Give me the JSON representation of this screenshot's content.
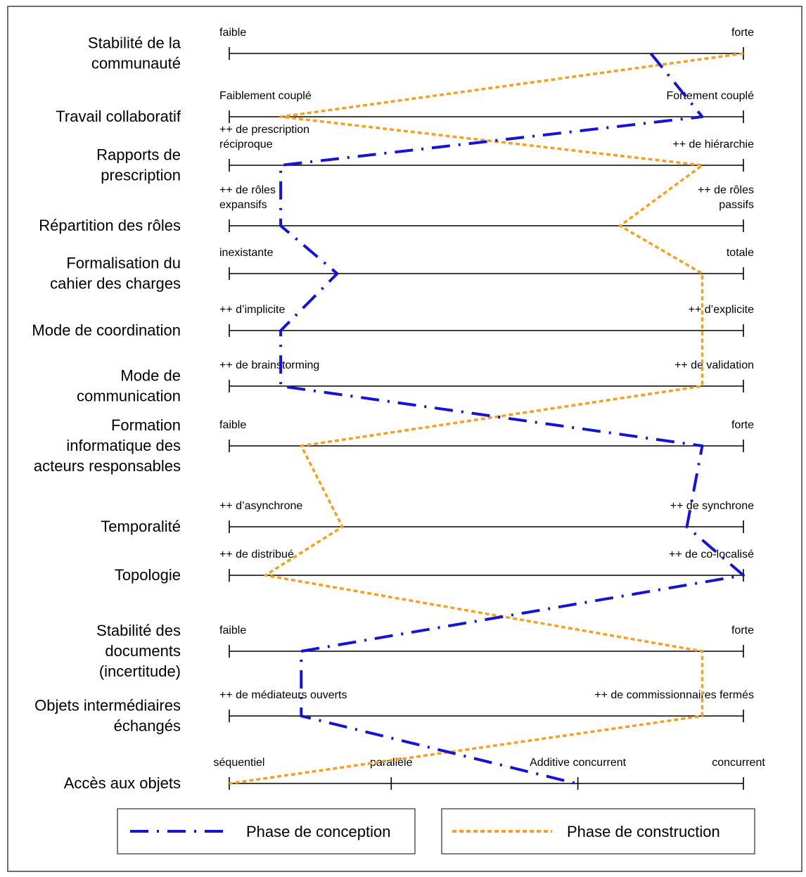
{
  "dimensions": [
    {
      "label": [
        "Stabilité de la",
        "communauté"
      ],
      "left": [
        "faible"
      ],
      "right": [
        "forte"
      ],
      "conception": 0.82,
      "construction": 1.0
    },
    {
      "label": [
        "Travail collaboratif"
      ],
      "left": [
        "Faiblement couplé"
      ],
      "right": [
        "Fortement couplé"
      ],
      "conception": 0.92,
      "construction": 0.1
    },
    {
      "label": [
        "Rapports de",
        "prescription"
      ],
      "left": [
        "++ de prescription",
        "réciproque"
      ],
      "right": [
        "++ de hiérarchie"
      ],
      "conception": 0.1,
      "construction": 0.92
    },
    {
      "label": [
        "Répartition des rôles"
      ],
      "left": [
        "++ de rôles",
        "expansifs"
      ],
      "right": [
        "++ de rôles",
        "passifs"
      ],
      "conception": 0.1,
      "construction": 0.76
    },
    {
      "label": [
        "Formalisation du",
        "cahier des charges"
      ],
      "left": [
        "inexistante"
      ],
      "right": [
        "totale"
      ],
      "conception": 0.21,
      "construction": 0.92
    },
    {
      "label": [
        "Mode de coordination"
      ],
      "left": [
        "++ d’implicite"
      ],
      "right": [
        "++ d’explicite"
      ],
      "conception": 0.1,
      "construction": 0.92
    },
    {
      "label": [
        "Mode de",
        "communication"
      ],
      "left": [
        "++ de brainstorming"
      ],
      "right": [
        "++ de validation"
      ],
      "conception": 0.1,
      "construction": 0.92
    },
    {
      "label": [
        "Formation",
        "informatique des",
        "acteurs responsables"
      ],
      "left": [
        "faible"
      ],
      "right": [
        "forte"
      ],
      "conception": 0.92,
      "construction": 0.14
    },
    {
      "label": [
        "Temporalité"
      ],
      "left": [
        "++ d’asynchrone"
      ],
      "right": [
        "++ de synchrone"
      ],
      "conception": 0.89,
      "construction": 0.22
    },
    {
      "label": [
        "Topologie"
      ],
      "left": [
        "++ de distribué"
      ],
      "right": [
        "++ de co-localisé"
      ],
      "conception": 1.0,
      "construction": 0.07
    },
    {
      "label": [
        "Stabilité des",
        "documents",
        "(incertitude)"
      ],
      "left": [
        "faible"
      ],
      "right": [
        "forte"
      ],
      "conception": 0.14,
      "construction": 0.92
    },
    {
      "label": [
        "Objets intermédiaires",
        "échangés"
      ],
      "left": [
        "++ de médiateurs ouverts"
      ],
      "right": [
        "++ de commissionnaires fermés"
      ],
      "conception": 0.14,
      "construction": 0.92
    },
    {
      "label": [
        "Accès aux objets"
      ],
      "scale": [
        "séquentiel",
        "parallèle",
        "Additive concurrent",
        "concurrent"
      ],
      "conception": 0.675,
      "construction": 0.0
    }
  ],
  "legend": {
    "conception_label": "Phase de conception",
    "construction_label": "Phase de construction"
  },
  "colors": {
    "conception": "#1414d2",
    "construction": "#f5a01e",
    "axis": "#000000",
    "frame": "#6e6e6e"
  }
}
